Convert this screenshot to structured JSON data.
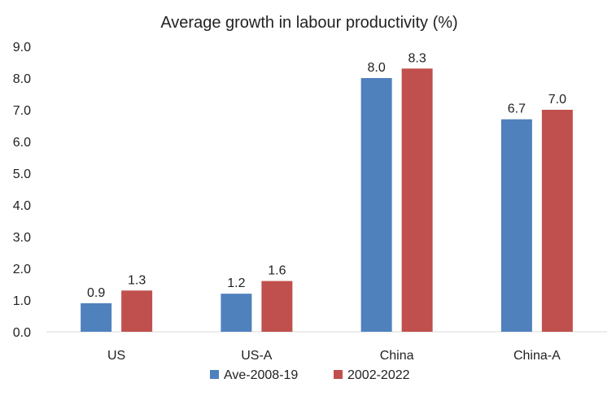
{
  "chart_data": {
    "type": "bar",
    "title": "Average growth in labour productivity (%)",
    "categories": [
      "US",
      "US-A",
      "China",
      "China-A"
    ],
    "series": [
      {
        "name": "Ave-2008-19",
        "color": "#4F81BD",
        "values": [
          0.9,
          1.2,
          8.0,
          6.7
        ],
        "labels": [
          "0.9",
          "1.2",
          "8.0",
          "6.7"
        ]
      },
      {
        "name": "2002-2022",
        "color": "#C0504D",
        "values": [
          1.3,
          1.6,
          8.3,
          7.0
        ],
        "labels": [
          "1.3",
          "1.6",
          "8.3",
          "7.0"
        ]
      }
    ],
    "ylim": [
      0,
      9
    ],
    "yticks": [
      "0.0",
      "1.0",
      "2.0",
      "3.0",
      "4.0",
      "5.0",
      "6.0",
      "7.0",
      "8.0",
      "9.0"
    ],
    "grid": false,
    "legend_position": "bottom"
  }
}
